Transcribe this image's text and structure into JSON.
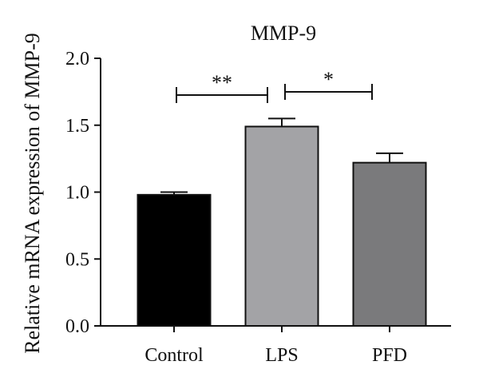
{
  "chart_data": {
    "type": "bar",
    "title": "MMP-9",
    "xlabel": "",
    "ylabel": "Relative mRNA expression of MMP-9",
    "categories": [
      "Control",
      "LPS",
      "PFD"
    ],
    "values": [
      0.98,
      1.49,
      1.22
    ],
    "errors": [
      0.02,
      0.06,
      0.07
    ],
    "ylim": [
      0,
      2.0
    ],
    "yticks": [
      "0.0",
      "0.5",
      "1.0",
      "1.5",
      "2.0"
    ],
    "bar_colors": [
      "#000000",
      "#a3a3a6",
      "#7a7a7c"
    ],
    "significance": [
      {
        "from": "Control",
        "to": "LPS",
        "label": "**"
      },
      {
        "from": "LPS",
        "to": "PFD",
        "label": "*"
      }
    ],
    "grid": false,
    "legend": "none"
  }
}
